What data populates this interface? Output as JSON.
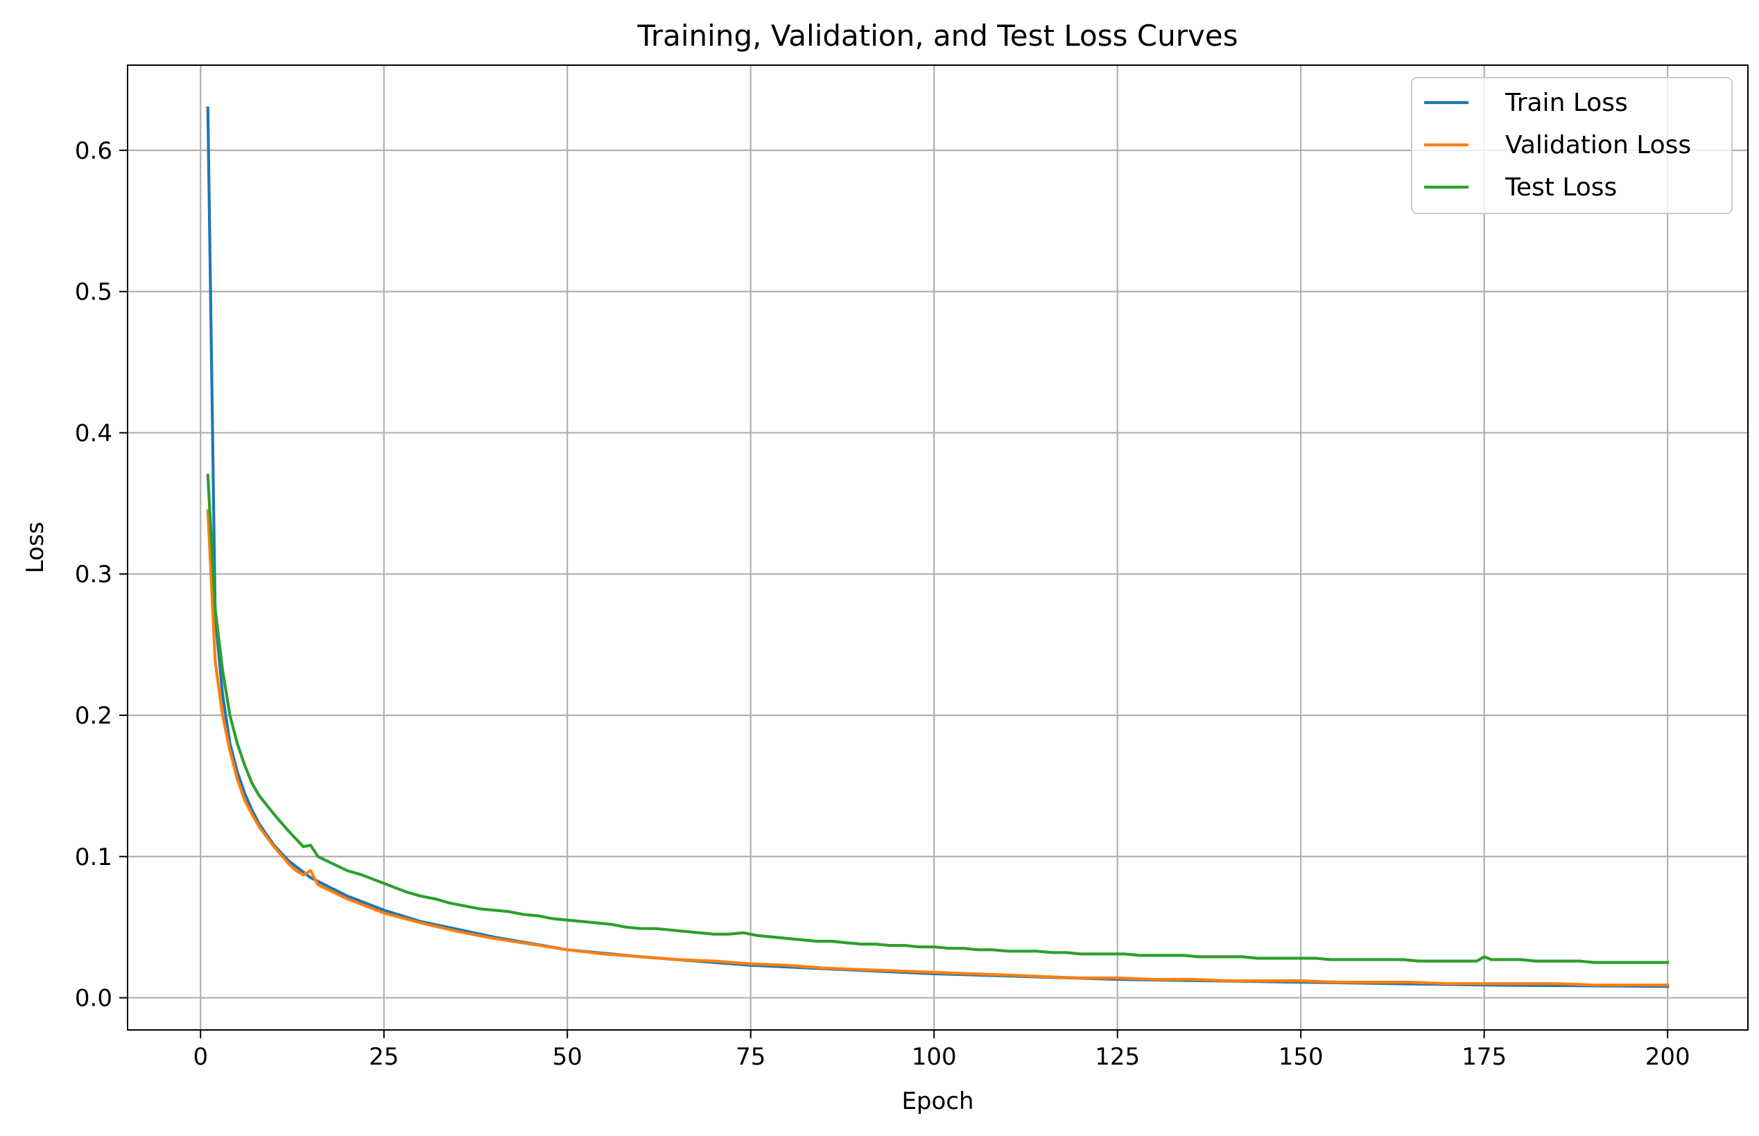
{
  "chart_data": {
    "type": "line",
    "title": "Training, Validation, and Test Loss Curves",
    "xlabel": "Epoch",
    "ylabel": "Loss",
    "xlim": [
      -9.95,
      210.95
    ],
    "ylim": [
      -0.0228,
      0.6603
    ],
    "xticks": [
      0,
      25,
      50,
      75,
      100,
      125,
      150,
      175,
      200
    ],
    "xtick_labels": [
      "0",
      "25",
      "50",
      "75",
      "100",
      "125",
      "150",
      "175",
      "200"
    ],
    "yticks": [
      0.0,
      0.1,
      0.2,
      0.3,
      0.4,
      0.5,
      0.6
    ],
    "ytick_labels": [
      "0.0",
      "0.1",
      "0.2",
      "0.3",
      "0.4",
      "0.5",
      "0.6"
    ],
    "grid": true,
    "legend_position": "top-right",
    "series": [
      {
        "name": "Train Loss",
        "color": "#1f77b4",
        "x": [
          1,
          2,
          3,
          4,
          5,
          6,
          7,
          8,
          10,
          12,
          15,
          20,
          25,
          30,
          40,
          50,
          60,
          75,
          100,
          125,
          150,
          175,
          200
        ],
        "values": [
          0.63,
          0.27,
          0.215,
          0.18,
          0.16,
          0.145,
          0.133,
          0.123,
          0.108,
          0.097,
          0.085,
          0.072,
          0.062,
          0.054,
          0.043,
          0.034,
          0.029,
          0.023,
          0.017,
          0.013,
          0.011,
          0.009,
          0.008
        ]
      },
      {
        "name": "Validation Loss",
        "color": "#ff7f0e",
        "x": [
          1,
          2,
          3,
          4,
          5,
          6,
          7,
          8,
          10,
          12,
          13,
          14,
          15,
          16,
          20,
          25,
          30,
          35,
          40,
          45,
          50,
          55,
          60,
          65,
          70,
          75,
          80,
          85,
          90,
          95,
          100,
          105,
          110,
          115,
          120,
          125,
          130,
          135,
          140,
          145,
          150,
          155,
          160,
          165,
          170,
          175,
          180,
          185,
          190,
          195,
          200
        ],
        "values": [
          0.345,
          0.238,
          0.2,
          0.175,
          0.155,
          0.14,
          0.13,
          0.121,
          0.107,
          0.095,
          0.09,
          0.087,
          0.09,
          0.08,
          0.07,
          0.06,
          0.053,
          0.047,
          0.042,
          0.038,
          0.034,
          0.031,
          0.029,
          0.027,
          0.026,
          0.024,
          0.023,
          0.021,
          0.02,
          0.019,
          0.018,
          0.017,
          0.016,
          0.015,
          0.014,
          0.014,
          0.013,
          0.013,
          0.012,
          0.012,
          0.012,
          0.011,
          0.011,
          0.011,
          0.01,
          0.01,
          0.01,
          0.01,
          0.009,
          0.009,
          0.009
        ]
      },
      {
        "name": "Test Loss",
        "color": "#2ca02c",
        "x": [
          1,
          2,
          3,
          4,
          5,
          6,
          7,
          8,
          10,
          12,
          14,
          15,
          16,
          18,
          20,
          22,
          24,
          26,
          28,
          30,
          32,
          34,
          36,
          38,
          40,
          42,
          44,
          46,
          48,
          50,
          52,
          54,
          56,
          58,
          60,
          62,
          64,
          66,
          68,
          70,
          72,
          74,
          76,
          78,
          80,
          82,
          84,
          86,
          88,
          90,
          92,
          94,
          96,
          98,
          100,
          102,
          104,
          106,
          108,
          110,
          112,
          114,
          116,
          118,
          120,
          122,
          124,
          126,
          128,
          130,
          132,
          134,
          136,
          138,
          140,
          142,
          144,
          146,
          148,
          150,
          152,
          154,
          156,
          158,
          160,
          162,
          164,
          166,
          168,
          170,
          172,
          174,
          175,
          176,
          178,
          180,
          182,
          184,
          186,
          188,
          190,
          192,
          194,
          196,
          198,
          200
        ],
        "values": [
          0.37,
          0.275,
          0.232,
          0.2,
          0.18,
          0.165,
          0.152,
          0.143,
          0.13,
          0.118,
          0.107,
          0.108,
          0.1,
          0.095,
          0.09,
          0.087,
          0.083,
          0.079,
          0.075,
          0.072,
          0.07,
          0.067,
          0.065,
          0.063,
          0.062,
          0.061,
          0.059,
          0.058,
          0.056,
          0.055,
          0.054,
          0.053,
          0.052,
          0.05,
          0.049,
          0.049,
          0.048,
          0.047,
          0.046,
          0.045,
          0.045,
          0.046,
          0.044,
          0.043,
          0.042,
          0.041,
          0.04,
          0.04,
          0.039,
          0.038,
          0.038,
          0.037,
          0.037,
          0.036,
          0.036,
          0.035,
          0.035,
          0.034,
          0.034,
          0.033,
          0.033,
          0.033,
          0.032,
          0.032,
          0.031,
          0.031,
          0.031,
          0.031,
          0.03,
          0.03,
          0.03,
          0.03,
          0.029,
          0.029,
          0.029,
          0.029,
          0.028,
          0.028,
          0.028,
          0.028,
          0.028,
          0.027,
          0.027,
          0.027,
          0.027,
          0.027,
          0.027,
          0.026,
          0.026,
          0.026,
          0.026,
          0.026,
          0.029,
          0.027,
          0.027,
          0.027,
          0.026,
          0.026,
          0.026,
          0.026,
          0.025,
          0.025,
          0.025,
          0.025,
          0.025,
          0.025
        ]
      }
    ]
  }
}
